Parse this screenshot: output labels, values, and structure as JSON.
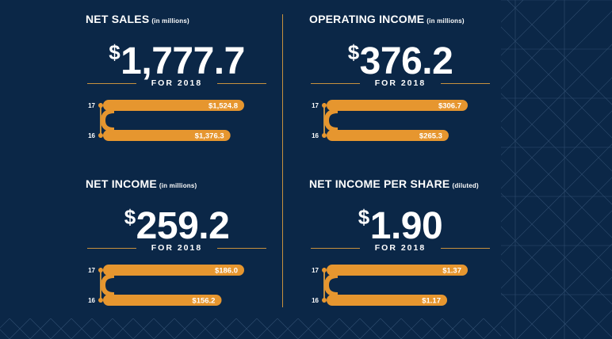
{
  "theme": {
    "background": "#0b2747",
    "accent": "#e6962f",
    "line": "#c8913e",
    "text": "#ffffff"
  },
  "chart_data": [
    {
      "type": "bar",
      "title": "NET SALES",
      "unit_note": "(in millions)",
      "headline_currency": "$",
      "headline_value": "1,777.7",
      "period_label": "FOR 2018",
      "categories": [
        "17",
        "16"
      ],
      "values": [
        1524.8,
        1376.3
      ],
      "value_labels": [
        "$1,524.8",
        "$1,376.3"
      ],
      "xlim": [
        0,
        1524.8
      ]
    },
    {
      "type": "bar",
      "title": "OPERATING INCOME",
      "unit_note": "(in millions)",
      "headline_currency": "$",
      "headline_value": "376.2",
      "period_label": "FOR 2018",
      "categories": [
        "17",
        "16"
      ],
      "values": [
        306.7,
        265.3
      ],
      "value_labels": [
        "$306.7",
        "$265.3"
      ],
      "xlim": [
        0,
        306.7
      ]
    },
    {
      "type": "bar",
      "title": "NET INCOME",
      "unit_note": "(in millions)",
      "headline_currency": "$",
      "headline_value": "259.2",
      "period_label": "FOR 2018",
      "categories": [
        "17",
        "16"
      ],
      "values": [
        186.0,
        156.2
      ],
      "value_labels": [
        "$186.0",
        "$156.2"
      ],
      "xlim": [
        0,
        186.0
      ]
    },
    {
      "type": "bar",
      "title": "NET INCOME PER SHARE",
      "unit_note": "(diluted)",
      "headline_currency": "$",
      "headline_value": "1.90",
      "period_label": "FOR 2018",
      "categories": [
        "17",
        "16"
      ],
      "values": [
        1.37,
        1.17
      ],
      "value_labels": [
        "$1.37",
        "$1.17"
      ],
      "xlim": [
        0,
        1.37
      ]
    }
  ]
}
